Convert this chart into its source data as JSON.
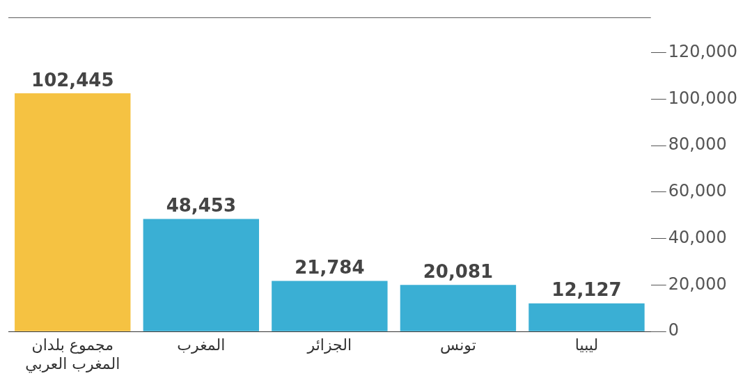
{
  "chart_data": {
    "type": "bar",
    "categories": [
      "مجموع بلدان المغرب العربي",
      "المغرب",
      "الجزائر",
      "تونس",
      "ليبيا"
    ],
    "values": [
      102445,
      48453,
      21784,
      20081,
      12127
    ],
    "colors": [
      "#f5c242",
      "#3aafd4",
      "#3aafd4",
      "#3aafd4",
      "#3aafd4"
    ],
    "ylim": [
      0,
      135000
    ],
    "yticks": [
      {
        "value": 0,
        "label": "0"
      },
      {
        "value": 20000,
        "label": "20,000"
      },
      {
        "value": 40000,
        "label": "40,000"
      },
      {
        "value": 60000,
        "label": "60,000"
      },
      {
        "value": 80000,
        "label": "80,000"
      },
      {
        "value": 100000,
        "label": "100,000"
      },
      {
        "value": 120000,
        "label": "120,000"
      }
    ],
    "data_labels": true,
    "value_labels": [
      "102,445",
      "48,453",
      "21,784",
      "20,081",
      "12,127"
    ],
    "grid": false,
    "legend": false
  }
}
